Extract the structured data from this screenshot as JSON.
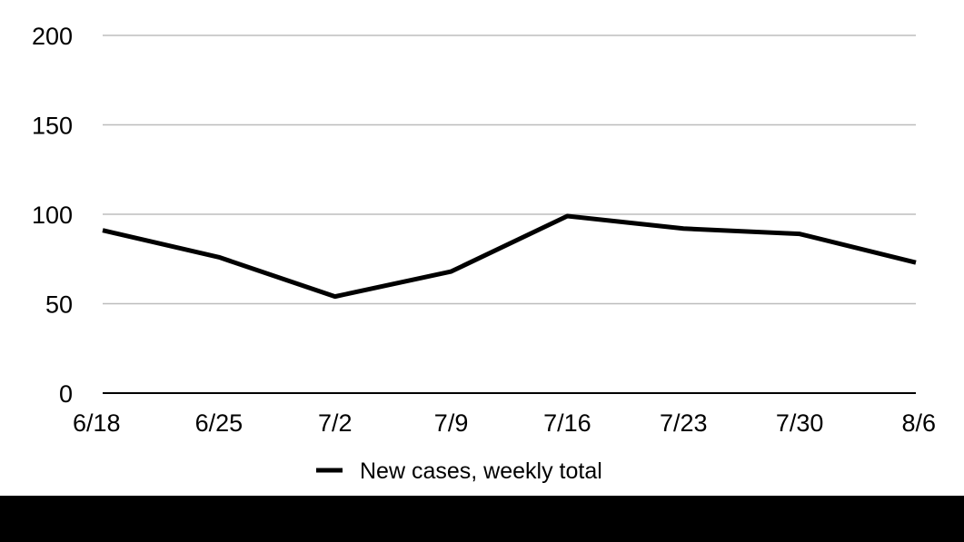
{
  "chart_data": {
    "type": "line",
    "title": "",
    "xlabel": "",
    "ylabel": "",
    "categories": [
      "6/18",
      "6/25",
      "7/2",
      "7/9",
      "7/16",
      "7/23",
      "7/30",
      "8/6"
    ],
    "series": [
      {
        "name": "New cases, weekly total",
        "values": [
          91,
          76,
          54,
          68,
          99,
          92,
          89,
          73
        ],
        "color": "#000000"
      }
    ],
    "ylim": [
      0,
      200
    ],
    "yticks": [
      0,
      50,
      100,
      150,
      200
    ],
    "grid": true,
    "legend_position": "bottom"
  },
  "colors": {
    "gridline": "#bdbdbd",
    "axis": "#000000",
    "footer": "#000000",
    "background": "#ffffff"
  }
}
